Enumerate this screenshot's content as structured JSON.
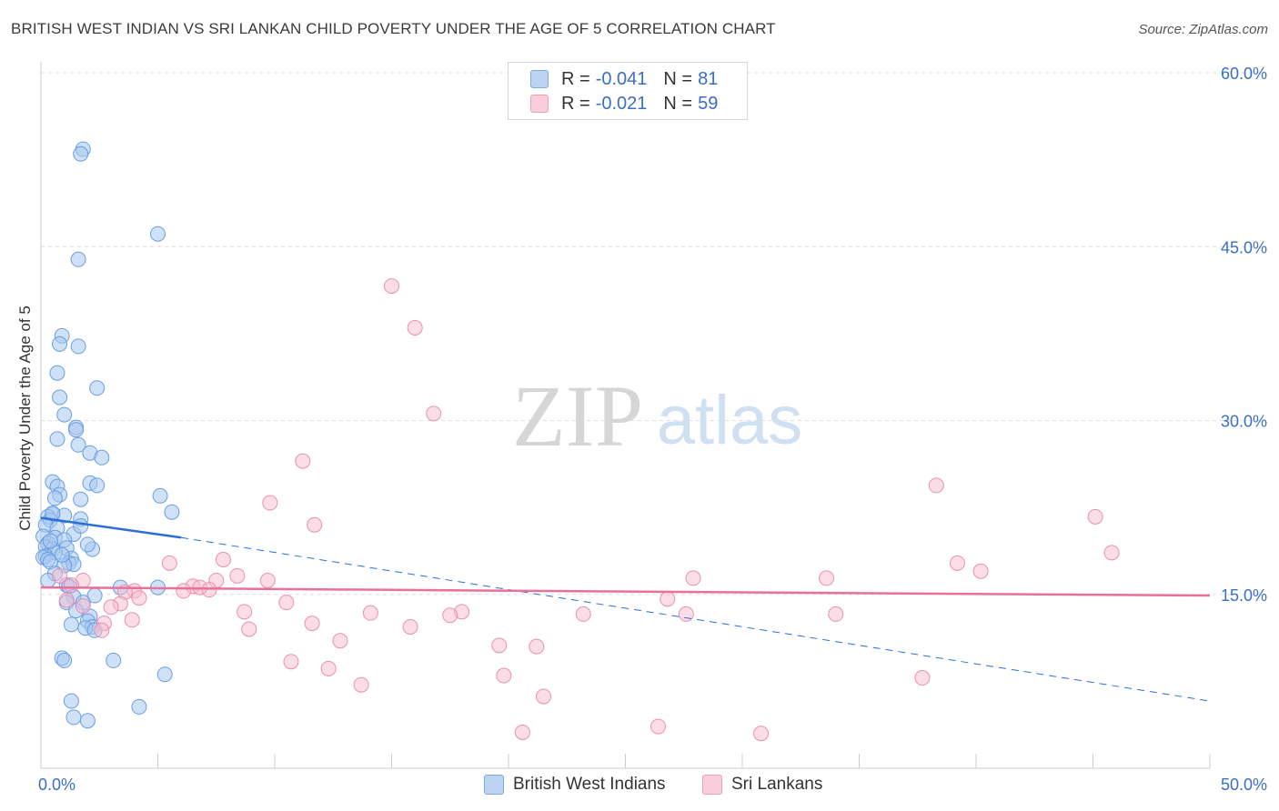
{
  "title": "BRITISH WEST INDIAN VS SRI LANKAN CHILD POVERTY UNDER THE AGE OF 5 CORRELATION CHART",
  "source": "Source: ZipAtlas.com",
  "watermark": {
    "zip": "ZIP",
    "atlas": "atlas"
  },
  "legend": {
    "series1": {
      "r_label": "R =",
      "r_value": "-0.041",
      "n_label": "N =",
      "n_value": "81"
    },
    "series2": {
      "r_label": "R =",
      "r_value": "-0.021",
      "n_label": "N =",
      "n_value": "59"
    }
  },
  "colors": {
    "blue_fill": "#a8c8f0",
    "blue_stroke": "#6a9ee0",
    "blue_line": "#2b6fd6",
    "pink_fill": "#f6bcd0",
    "pink_stroke": "#e890b0",
    "pink_line": "#e8709a",
    "axis_text": "#3a6fc4",
    "grid": "#dddddd"
  },
  "chart_data": {
    "type": "scatter",
    "title": "BRITISH WEST INDIAN VS SRI LANKAN CHILD POVERTY UNDER THE AGE OF 5 CORRELATION CHART",
    "xlabel": "",
    "ylabel": "Child Poverty Under the Age of 5",
    "xlim": [
      0,
      50
    ],
    "ylim": [
      0,
      60
    ],
    "x_tick_labels": [
      "0.0%",
      "50.0%"
    ],
    "y_ticks": [
      15,
      30,
      45,
      60
    ],
    "y_tick_labels": [
      "15.0%",
      "30.0%",
      "45.0%",
      "60.0%"
    ],
    "legend_position": "bottom",
    "series": [
      {
        "name": "British West Indians",
        "color": "#a8c8f0",
        "points": [
          [
            1.8,
            53.4
          ],
          [
            1.7,
            53.0
          ],
          [
            5.0,
            46.1
          ],
          [
            1.6,
            43.9
          ],
          [
            0.9,
            37.3
          ],
          [
            0.8,
            36.6
          ],
          [
            1.6,
            36.4
          ],
          [
            0.7,
            34.1
          ],
          [
            2.4,
            32.8
          ],
          [
            0.8,
            32.0
          ],
          [
            1.0,
            30.5
          ],
          [
            1.5,
            29.4
          ],
          [
            1.5,
            29.2
          ],
          [
            0.7,
            28.4
          ],
          [
            1.6,
            27.9
          ],
          [
            2.1,
            27.2
          ],
          [
            2.6,
            26.8
          ],
          [
            0.5,
            24.7
          ],
          [
            2.1,
            24.6
          ],
          [
            2.4,
            24.4
          ],
          [
            0.7,
            24.3
          ],
          [
            0.8,
            23.6
          ],
          [
            5.1,
            23.5
          ],
          [
            0.6,
            23.3
          ],
          [
            1.7,
            23.2
          ],
          [
            5.6,
            22.1
          ],
          [
            0.5,
            21.9
          ],
          [
            1.0,
            21.8
          ],
          [
            0.3,
            21.7
          ],
          [
            1.7,
            21.5
          ],
          [
            0.4,
            21.4
          ],
          [
            0.2,
            21.0
          ],
          [
            0.7,
            20.7
          ],
          [
            1.4,
            20.2
          ],
          [
            0.1,
            20.0
          ],
          [
            0.6,
            19.9
          ],
          [
            1.0,
            19.7
          ],
          [
            0.3,
            19.4
          ],
          [
            0.2,
            19.1
          ],
          [
            1.1,
            19.0
          ],
          [
            0.5,
            18.9
          ],
          [
            2.2,
            18.9
          ],
          [
            0.6,
            18.6
          ],
          [
            0.2,
            18.3
          ],
          [
            0.1,
            18.2
          ],
          [
            1.3,
            18.1
          ],
          [
            0.3,
            18.0
          ],
          [
            0.4,
            17.8
          ],
          [
            1.2,
            17.7
          ],
          [
            1.4,
            17.6
          ],
          [
            1.0,
            17.5
          ],
          [
            0.6,
            16.8
          ],
          [
            0.3,
            16.2
          ],
          [
            1.1,
            15.8
          ],
          [
            1.2,
            15.7
          ],
          [
            3.4,
            15.6
          ],
          [
            5.0,
            15.6
          ],
          [
            2.3,
            14.9
          ],
          [
            1.4,
            14.8
          ],
          [
            1.1,
            14.3
          ],
          [
            1.8,
            14.3
          ],
          [
            1.5,
            13.6
          ],
          [
            2.1,
            13.1
          ],
          [
            2.0,
            12.7
          ],
          [
            1.3,
            12.4
          ],
          [
            2.2,
            12.2
          ],
          [
            1.9,
            12.1
          ],
          [
            2.3,
            11.9
          ],
          [
            0.9,
            9.5
          ],
          [
            1.0,
            9.3
          ],
          [
            3.1,
            9.3
          ],
          [
            5.3,
            8.1
          ],
          [
            1.3,
            5.8
          ],
          [
            4.2,
            5.3
          ],
          [
            1.4,
            4.4
          ],
          [
            2.0,
            4.1
          ],
          [
            0.4,
            19.6
          ],
          [
            0.9,
            18.4
          ],
          [
            1.7,
            20.9
          ],
          [
            0.5,
            22.0
          ],
          [
            2.0,
            19.3
          ]
        ]
      },
      {
        "name": "Sri Lankans",
        "color": "#f6bcd0",
        "points": [
          [
            15.0,
            41.6
          ],
          [
            16.0,
            38.0
          ],
          [
            16.8,
            30.6
          ],
          [
            11.2,
            26.5
          ],
          [
            38.3,
            24.4
          ],
          [
            9.8,
            22.9
          ],
          [
            45.1,
            21.7
          ],
          [
            11.7,
            21.0
          ],
          [
            45.8,
            18.6
          ],
          [
            0.8,
            16.6
          ],
          [
            7.8,
            18.0
          ],
          [
            39.2,
            17.7
          ],
          [
            5.5,
            17.7
          ],
          [
            40.2,
            17.0
          ],
          [
            8.4,
            16.6
          ],
          [
            27.9,
            16.4
          ],
          [
            33.6,
            16.4
          ],
          [
            1.8,
            16.2
          ],
          [
            7.5,
            16.2
          ],
          [
            9.7,
            16.2
          ],
          [
            1.3,
            15.8
          ],
          [
            6.5,
            15.7
          ],
          [
            6.8,
            15.6
          ],
          [
            7.2,
            15.4
          ],
          [
            4.0,
            15.3
          ],
          [
            6.1,
            15.3
          ],
          [
            3.6,
            15.2
          ],
          [
            4.2,
            14.7
          ],
          [
            1.1,
            14.5
          ],
          [
            26.8,
            14.6
          ],
          [
            3.4,
            14.2
          ],
          [
            10.5,
            14.3
          ],
          [
            1.8,
            14.0
          ],
          [
            3.0,
            13.9
          ],
          [
            8.7,
            13.5
          ],
          [
            18.0,
            13.5
          ],
          [
            14.1,
            13.4
          ],
          [
            17.5,
            13.2
          ],
          [
            23.2,
            13.3
          ],
          [
            27.6,
            13.3
          ],
          [
            34.0,
            13.3
          ],
          [
            3.9,
            12.8
          ],
          [
            2.7,
            12.5
          ],
          [
            11.6,
            12.5
          ],
          [
            15.8,
            12.2
          ],
          [
            8.9,
            12.0
          ],
          [
            2.6,
            11.9
          ],
          [
            12.8,
            11.0
          ],
          [
            19.6,
            10.6
          ],
          [
            21.2,
            10.5
          ],
          [
            10.7,
            9.2
          ],
          [
            12.3,
            8.6
          ],
          [
            19.8,
            8.0
          ],
          [
            37.7,
            7.8
          ],
          [
            13.7,
            7.2
          ],
          [
            21.5,
            6.2
          ],
          [
            26.4,
            3.6
          ],
          [
            20.6,
            3.1
          ],
          [
            30.8,
            3.0
          ]
        ]
      }
    ],
    "trendlines": [
      {
        "series": "British West Indians",
        "x_start": 0,
        "y_start": 21.6,
        "x_end": 6.0,
        "y_end": 19.9,
        "dashed_to_x": 50,
        "dashed_to_y": 5.8
      },
      {
        "series": "Sri Lankans",
        "x_start": 0,
        "y_start": 15.6,
        "x_end": 50,
        "y_end": 14.9
      }
    ]
  }
}
